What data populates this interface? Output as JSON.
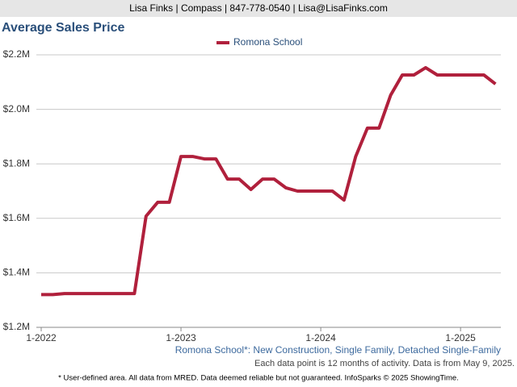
{
  "header": "Lisa Finks | Compass | 847-778-0540 | Lisa@LisaFinks.com",
  "chart_data": {
    "type": "line",
    "title": "Average Sales Price",
    "categories": [
      "1-2022",
      null,
      null,
      null,
      null,
      null,
      null,
      null,
      null,
      null,
      null,
      null,
      "1-2023",
      null,
      null,
      null,
      null,
      null,
      null,
      null,
      null,
      null,
      null,
      null,
      "1-2024",
      null,
      null,
      null,
      null,
      null,
      null,
      null,
      null,
      null,
      null,
      null,
      "1-2025",
      null,
      null,
      null
    ],
    "series": [
      {
        "name": "Romona School",
        "color": "#b0203c",
        "values": [
          1320000,
          1320000,
          1324000,
          1324000,
          1324000,
          1324000,
          1324000,
          1324000,
          1324000,
          1608000,
          1659000,
          1659000,
          1827000,
          1827000,
          1818000,
          1818000,
          1744000,
          1744000,
          1706000,
          1744000,
          1744000,
          1712000,
          1700000,
          1700000,
          1700000,
          1700000,
          1667000,
          1827000,
          1931000,
          1931000,
          2052000,
          2126000,
          2126000,
          2153000,
          2126000,
          2126000,
          2126000,
          2126000,
          2126000,
          2093000
        ]
      }
    ],
    "ylim": [
      1200000,
      2200000
    ],
    "yticks": [
      {
        "value": 1200000,
        "label": "$1.2M"
      },
      {
        "value": 1400000,
        "label": "$1.4M"
      },
      {
        "value": 1600000,
        "label": "$1.6M"
      },
      {
        "value": 1800000,
        "label": "$1.8M"
      },
      {
        "value": 2000000,
        "label": "$2.0M"
      },
      {
        "value": 2200000,
        "label": "$2.2M"
      }
    ],
    "grid": true,
    "legend": "top"
  },
  "notes": [
    "Romona School*: New Construction, Single Family, Detached Single-Family",
    "Each data point is 12 months of activity. Data is from May 9, 2025."
  ],
  "footnote": "* User-defined area. All data from MRED. Data deemed reliable but not guaranteed. InfoSparks © 2025 ShowingTime."
}
